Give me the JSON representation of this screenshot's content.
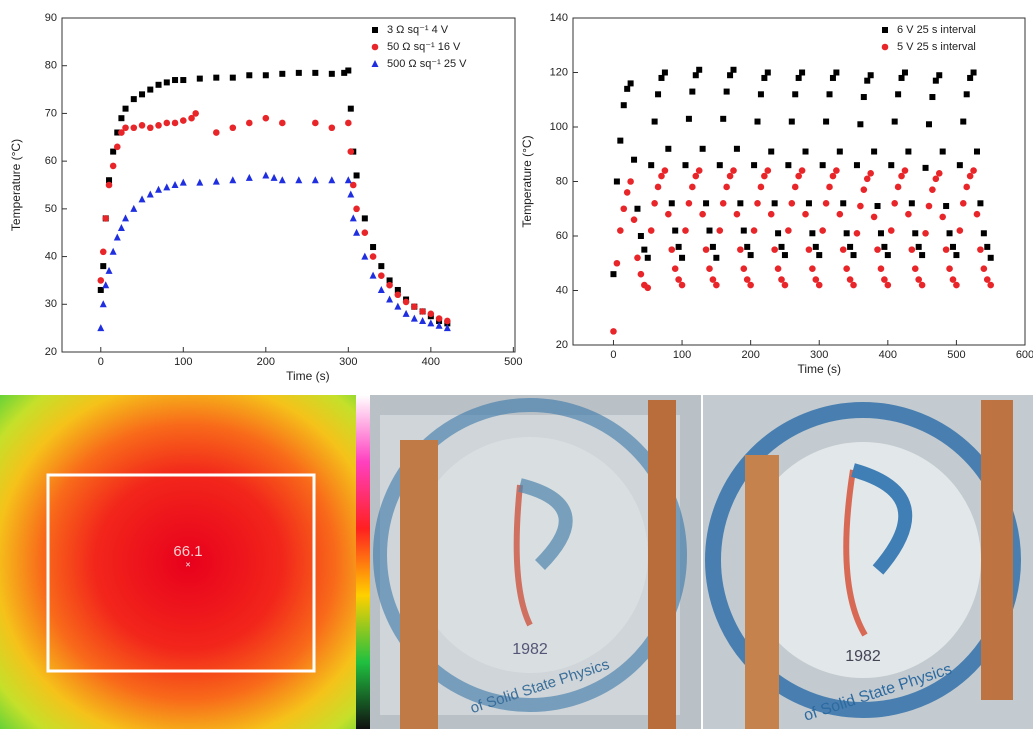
{
  "chart_data": [
    {
      "type": "scatter",
      "x_label": "Time (s)",
      "y_label": "Temperature (°C)",
      "xlim": [
        -47,
        502
      ],
      "ylim": [
        20,
        90
      ],
      "xticks": [
        0,
        100,
        200,
        300,
        400,
        500
      ],
      "yticks": [
        20,
        30,
        40,
        50,
        60,
        70,
        80,
        90
      ],
      "legend": "upper right",
      "series": [
        {
          "name": "3 Ω sq⁻¹ 4 V",
          "color": "#000000",
          "marker": "square",
          "x": [
            0,
            3,
            6,
            10,
            15,
            20,
            25,
            30,
            40,
            50,
            60,
            70,
            80,
            90,
            100,
            120,
            140,
            160,
            180,
            200,
            220,
            240,
            260,
            280,
            295,
            300,
            303,
            306,
            310,
            320,
            330,
            340,
            350,
            360,
            370,
            380,
            390,
            400,
            410,
            420
          ],
          "values": [
            33,
            38,
            48,
            56,
            62,
            66,
            69,
            71,
            73,
            74,
            75,
            76,
            76.5,
            77,
            77,
            77.3,
            77.5,
            77.5,
            78,
            78,
            78.3,
            78.5,
            78.5,
            78.3,
            78.5,
            79,
            71,
            62,
            57,
            48,
            42,
            38,
            35,
            33,
            31,
            29.5,
            28.5,
            27.5,
            26.5,
            26
          ]
        },
        {
          "name": "50 Ω sq⁻¹ 16 V",
          "color": "#e8262a",
          "marker": "circle",
          "x": [
            0,
            3,
            6,
            10,
            15,
            20,
            25,
            30,
            40,
            50,
            60,
            70,
            80,
            90,
            100,
            110,
            115,
            140,
            160,
            180,
            200,
            220,
            260,
            280,
            300,
            303,
            306,
            310,
            320,
            330,
            340,
            350,
            360,
            370,
            380,
            390,
            400,
            410,
            420
          ],
          "values": [
            35,
            41,
            48,
            55,
            59,
            63,
            66,
            67,
            67,
            67.5,
            67,
            67.5,
            68,
            68,
            68.5,
            69,
            70,
            66,
            67,
            68,
            69,
            68,
            68,
            67,
            68,
            62,
            55,
            50,
            45,
            40,
            36,
            34,
            32,
            30.5,
            29.5,
            28.5,
            28,
            27,
            26.5
          ]
        },
        {
          "name": "500 Ω sq⁻¹ 25 V",
          "color": "#1f2fe0",
          "marker": "triangle",
          "x": [
            0,
            3,
            6,
            10,
            15,
            20,
            25,
            30,
            40,
            50,
            60,
            70,
            80,
            90,
            100,
            120,
            140,
            160,
            180,
            200,
            210,
            220,
            240,
            260,
            280,
            300,
            303,
            306,
            310,
            320,
            330,
            340,
            350,
            360,
            370,
            380,
            390,
            400,
            410,
            420
          ],
          "values": [
            25,
            30,
            34,
            37,
            41,
            44,
            46,
            48,
            50,
            52,
            53,
            54,
            54.5,
            55,
            55.5,
            55.5,
            55.7,
            56,
            56.5,
            57,
            56.5,
            56,
            56,
            56,
            56,
            56,
            53,
            48,
            45,
            40,
            36,
            33,
            31,
            29.5,
            28,
            27,
            26.5,
            26,
            25.5,
            25
          ]
        }
      ]
    },
    {
      "type": "scatter",
      "x_label": "Time (s)",
      "y_label": "Temperature (°C)",
      "xlim": [
        -59,
        600
      ],
      "ylim": [
        20,
        140
      ],
      "xticks": [
        0,
        100,
        200,
        300,
        400,
        500,
        600
      ],
      "yticks": [
        20,
        40,
        60,
        80,
        100,
        120,
        140
      ],
      "legend": "upper right",
      "series": [
        {
          "name": "6 V 25 s interval",
          "color": "#000000",
          "marker": "square",
          "x": [
            0,
            5,
            10,
            15,
            20,
            25,
            30,
            35,
            40,
            45,
            50,
            55,
            60,
            65,
            70,
            75,
            80,
            85,
            90,
            95,
            100,
            105,
            110,
            115,
            120,
            125,
            130,
            135,
            140,
            145,
            150,
            155,
            160,
            165,
            170,
            175,
            180,
            185,
            190,
            195,
            200,
            205,
            210,
            215,
            220,
            225,
            230,
            235,
            240,
            245,
            250,
            255,
            260,
            265,
            270,
            275,
            280,
            285,
            290,
            295,
            300,
            305,
            310,
            315,
            320,
            325,
            330,
            335,
            340,
            345,
            350,
            355,
            360,
            365,
            370,
            375,
            380,
            385,
            390,
            395,
            400,
            405,
            410,
            415,
            420,
            425,
            430,
            435,
            440,
            445,
            450,
            455,
            460,
            465,
            470,
            475,
            480,
            485,
            490,
            495,
            500,
            505,
            510,
            515,
            520,
            525,
            530,
            535,
            540,
            545,
            550
          ],
          "values": [
            46,
            80,
            95,
            108,
            114,
            116,
            88,
            70,
            60,
            55,
            52,
            86,
            102,
            112,
            118,
            120,
            92,
            72,
            62,
            56,
            52,
            86,
            103,
            113,
            119,
            121,
            92,
            72,
            62,
            56,
            52,
            86,
            103,
            113,
            119,
            121,
            92,
            72,
            62,
            56,
            53,
            86,
            102,
            112,
            118,
            120,
            91,
            72,
            61,
            56,
            53,
            86,
            102,
            112,
            118,
            120,
            91,
            72,
            61,
            56,
            53,
            86,
            102,
            112,
            118,
            120,
            91,
            72,
            61,
            56,
            53,
            86,
            101,
            111,
            117,
            119,
            91,
            71,
            61,
            56,
            53,
            86,
            102,
            112,
            118,
            120,
            91,
            72,
            61,
            56,
            53,
            85,
            101,
            111,
            117,
            119,
            91,
            71,
            61,
            56,
            53,
            86,
            102,
            112,
            118,
            120,
            91,
            72,
            61,
            56,
            52
          ]
        },
        {
          "name": "5 V 25 s interval",
          "color": "#e8262a",
          "marker": "circle",
          "x": [
            0,
            5,
            10,
            15,
            20,
            25,
            30,
            35,
            40,
            45,
            50,
            55,
            60,
            65,
            70,
            75,
            80,
            85,
            90,
            95,
            100,
            105,
            110,
            115,
            120,
            125,
            130,
            135,
            140,
            145,
            150,
            155,
            160,
            165,
            170,
            175,
            180,
            185,
            190,
            195,
            200,
            205,
            210,
            215,
            220,
            225,
            230,
            235,
            240,
            245,
            250,
            255,
            260,
            265,
            270,
            275,
            280,
            285,
            290,
            295,
            300,
            305,
            310,
            315,
            320,
            325,
            330,
            335,
            340,
            345,
            350,
            355,
            360,
            365,
            370,
            375,
            380,
            385,
            390,
            395,
            400,
            405,
            410,
            415,
            420,
            425,
            430,
            435,
            440,
            445,
            450,
            455,
            460,
            465,
            470,
            475,
            480,
            485,
            490,
            495,
            500,
            505,
            510,
            515,
            520,
            525,
            530,
            535,
            540,
            545,
            550
          ],
          "values": [
            25,
            50,
            62,
            70,
            76,
            80,
            66,
            52,
            46,
            42,
            41,
            62,
            72,
            78,
            82,
            84,
            68,
            55,
            48,
            44,
            42,
            62,
            72,
            78,
            82,
            84,
            68,
            55,
            48,
            44,
            42,
            62,
            72,
            78,
            82,
            84,
            68,
            55,
            48,
            44,
            42,
            62,
            72,
            78,
            82,
            84,
            68,
            55,
            48,
            44,
            42,
            62,
            72,
            78,
            82,
            84,
            68,
            55,
            48,
            44,
            42,
            62,
            72,
            78,
            82,
            84,
            68,
            55,
            48,
            44,
            42,
            61,
            71,
            77,
            81,
            83,
            67,
            55,
            48,
            44,
            42,
            62,
            72,
            78,
            82,
            84,
            68,
            55,
            48,
            44,
            42,
            61,
            71,
            77,
            81,
            83,
            67,
            55,
            48,
            44,
            42,
            62,
            72,
            78,
            82,
            84,
            68,
            55,
            48,
            44,
            42
          ]
        }
      ]
    }
  ],
  "thermal_image": {
    "reading": "66.1"
  },
  "photos": [
    {
      "year": "1982",
      "caption": "of Solid State Physics"
    },
    {
      "year": "1982",
      "caption": "of Solid State Physics"
    }
  ]
}
